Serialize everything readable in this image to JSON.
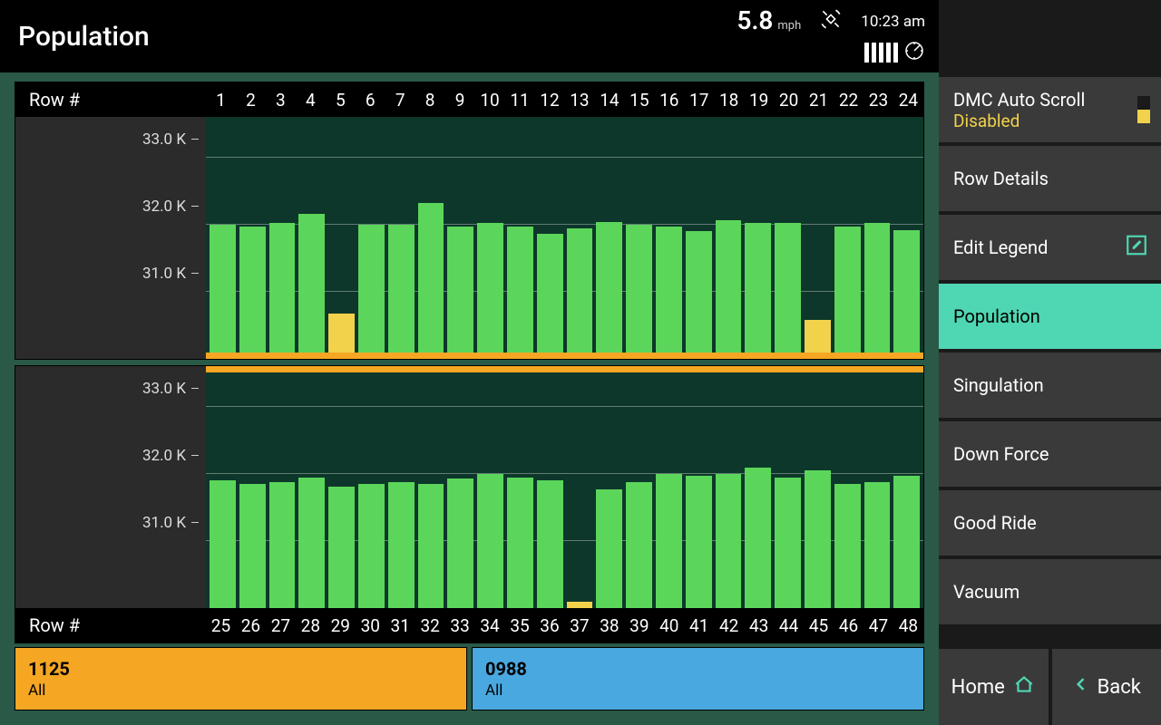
{
  "header": {
    "title": "Population",
    "speed": "5.8",
    "speed_unit": "mph",
    "time": "10:23 am",
    "signal_bars": 5
  },
  "charts": {
    "y_label_prefix": "Row #",
    "y_min": 30.0,
    "y_max": 33.6,
    "y_ticks": [
      33.0,
      32.0,
      31.0
    ],
    "tick_suffix": " K",
    "grid_color": "rgba(255,255,255,0.35)",
    "bar_color_green": "#5bd65b",
    "bar_color_yellow": "#f2d24b",
    "orange_strip_color": "#f5a623",
    "bg_plot": "#0d372a",
    "top": {
      "rows": [
        1,
        2,
        3,
        4,
        5,
        6,
        7,
        8,
        9,
        10,
        11,
        12,
        13,
        14,
        15,
        16,
        17,
        18,
        19,
        20,
        21,
        22,
        23,
        24
      ],
      "values": [
        31.95,
        31.92,
        31.98,
        32.12,
        30.6,
        31.95,
        31.95,
        32.28,
        31.93,
        31.98,
        31.92,
        31.82,
        31.9,
        32.0,
        31.95,
        31.93,
        31.86,
        32.02,
        31.98,
        31.98,
        30.5,
        31.93,
        31.98,
        31.87
      ],
      "colors": [
        "green",
        "green",
        "green",
        "green",
        "yellow",
        "green",
        "green",
        "green",
        "green",
        "green",
        "green",
        "green",
        "green",
        "green",
        "green",
        "green",
        "green",
        "green",
        "green",
        "green",
        "yellow",
        "green",
        "green",
        "green"
      ],
      "orange_position": "bottom"
    },
    "bottom": {
      "rows": [
        25,
        26,
        27,
        28,
        29,
        30,
        31,
        32,
        33,
        34,
        35,
        36,
        37,
        38,
        39,
        40,
        41,
        42,
        43,
        44,
        45,
        46,
        47,
        48
      ],
      "values": [
        31.95,
        31.9,
        31.93,
        32.0,
        31.86,
        31.9,
        31.93,
        31.9,
        31.98,
        32.05,
        32.0,
        31.95,
        30.1,
        31.82,
        31.92,
        32.05,
        32.02,
        32.05,
        32.15,
        32.0,
        32.1,
        31.9,
        31.93,
        32.02
      ],
      "colors": [
        "green",
        "green",
        "green",
        "green",
        "green",
        "green",
        "green",
        "green",
        "green",
        "green",
        "green",
        "green",
        "yellow",
        "green",
        "green",
        "green",
        "green",
        "green",
        "green",
        "green",
        "green",
        "green",
        "green",
        "green"
      ],
      "orange_position": "top"
    }
  },
  "footer": {
    "left": {
      "value": "1125",
      "label": "All",
      "bg": "#f5a623"
    },
    "right": {
      "value": "0988",
      "label": "All",
      "bg": "#4aa8e0"
    }
  },
  "sidebar": {
    "items": [
      {
        "id": "dmc",
        "line1": "DMC Auto Scroll",
        "line2": "Disabled",
        "type": "toggle"
      },
      {
        "id": "rowdetails",
        "label": "Row Details"
      },
      {
        "id": "editlegend",
        "label": "Edit Legend",
        "icon": "edit"
      },
      {
        "id": "population",
        "label": "Population",
        "active": true
      },
      {
        "id": "singulation",
        "label": "Singulation"
      },
      {
        "id": "downforce",
        "label": "Down Force"
      },
      {
        "id": "goodride",
        "label": "Good Ride"
      },
      {
        "id": "vacuum",
        "label": "Vacuum"
      }
    ],
    "nav": {
      "home": "Home",
      "back": "Back"
    }
  }
}
